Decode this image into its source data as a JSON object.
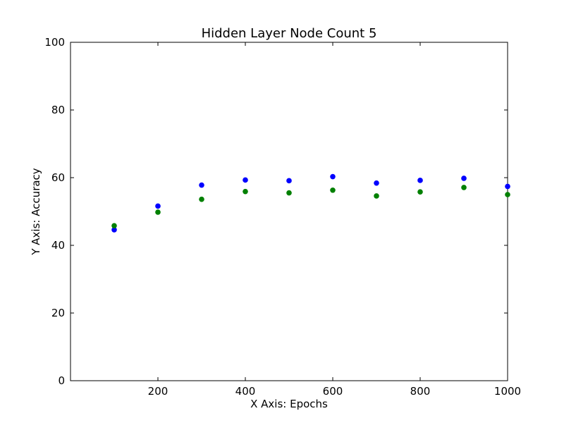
{
  "chart_data": {
    "type": "scatter",
    "title": "Hidden Layer Node Count 5",
    "xlabel": "X Axis: Epochs",
    "ylabel": "Y Axis: Accuracy",
    "xlim": [
      0,
      1000
    ],
    "ylim": [
      0,
      100
    ],
    "xticks": [
      200,
      400,
      600,
      800,
      1000
    ],
    "yticks": [
      0,
      20,
      40,
      60,
      80,
      100
    ],
    "grid": false,
    "series": [
      {
        "color": "#0000ff",
        "x": [
          100,
          200,
          300,
          400,
          500,
          600,
          700,
          800,
          900,
          1000
        ],
        "y": [
          44.6,
          51.6,
          57.8,
          59.3,
          59.1,
          60.3,
          58.4,
          59.2,
          59.8,
          57.4
        ]
      },
      {
        "color": "#008000",
        "x": [
          100,
          200,
          300,
          400,
          500,
          600,
          700,
          800,
          900,
          1000
        ],
        "y": [
          45.8,
          49.8,
          53.6,
          55.9,
          55.5,
          56.3,
          54.6,
          55.8,
          57.1,
          55.0
        ]
      }
    ]
  }
}
